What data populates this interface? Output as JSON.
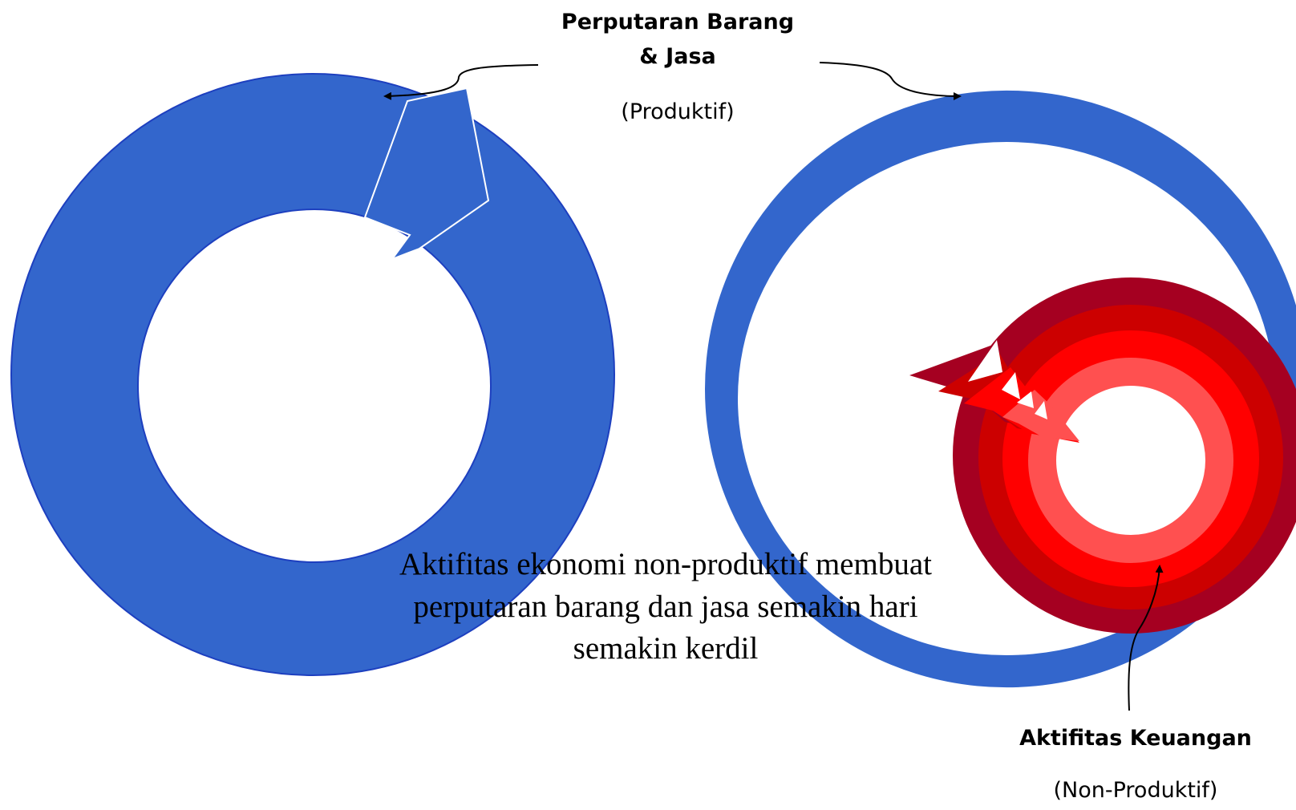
{
  "labels": {
    "top_title": "Perputaran Barang",
    "top_title_2": "& Jasa",
    "top_sub": "(Produktif)",
    "caption_line1": "Aktifitas ekonomi non-produktif membuat",
    "caption_line2": "perputaran barang dan jasa semakin hari",
    "caption_line3": "semakin kerdil",
    "bottom_title": "Aktifitas Keuangan",
    "bottom_sub": "(Non-Produktif)"
  },
  "colors": {
    "ring_blue": "#3366cc",
    "ring_blue_edge": "#1d3fbf",
    "red_outer": "#a50021",
    "red_2": "#cc0000",
    "red_3": "#ff0000",
    "red_4": "#ff5050"
  }
}
